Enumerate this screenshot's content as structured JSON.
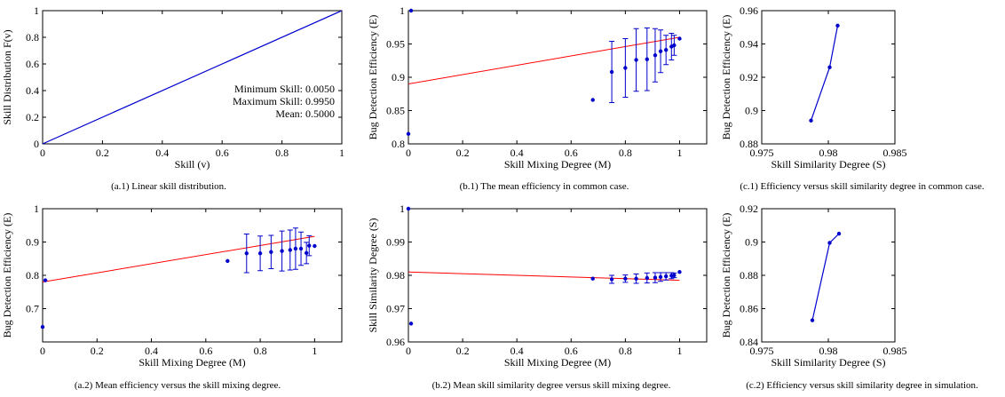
{
  "chart_data": [
    {
      "id": "a1",
      "type": "line",
      "xlabel": "Skill (v)",
      "ylabel": "Skill Distribution F(v)",
      "caption": "(a.1) Linear skill distribution.",
      "xlim": [
        0,
        1
      ],
      "ylim": [
        0,
        1
      ],
      "xticks": [
        0,
        0.2,
        0.4,
        0.6,
        0.8,
        1
      ],
      "yticks": [
        0,
        0.2,
        0.4,
        0.6,
        0.8,
        1
      ],
      "annotations": [
        "Minimum Skill: 0.0050",
        "Maximum Skill: 0.9950",
        "Mean: 0.5000"
      ],
      "series": [
        {
          "color": "#0000cc",
          "style": "line",
          "x": [
            0,
            1
          ],
          "y": [
            0,
            1
          ]
        }
      ]
    },
    {
      "id": "b1",
      "type": "scatter",
      "xlabel": "Skill Mixing Degree (M)",
      "ylabel": "Bug Detection Efficiency (E)",
      "caption": "(b.1) The mean efficiency in common case.",
      "xlim": [
        0,
        1.1
      ],
      "ylim": [
        0.8,
        1
      ],
      "xticks": [
        0,
        0.2,
        0.4,
        0.6,
        0.8,
        1
      ],
      "yticks": [
        0.8,
        0.85,
        0.9,
        0.95,
        1
      ],
      "fit": {
        "x": [
          0,
          1
        ],
        "y": [
          0.89,
          0.96
        ],
        "color": "#ff0000"
      },
      "series": [
        {
          "color": "#0000cc",
          "style": "errorbar",
          "x": [
            0.0,
            0.01,
            0.68,
            0.75,
            0.8,
            0.84,
            0.88,
            0.91,
            0.93,
            0.95,
            0.97,
            0.98,
            1.0
          ],
          "y": [
            0.815,
            1.0,
            0.866,
            0.908,
            0.914,
            0.926,
            0.927,
            0.933,
            0.939,
            0.941,
            0.946,
            0.948,
            0.958
          ],
          "err": [
            0,
            0,
            0,
            0.046,
            0.044,
            0.047,
            0.047,
            0.04,
            0.032,
            0.022,
            0.02,
            0.015,
            0
          ]
        }
      ]
    },
    {
      "id": "c1",
      "type": "line",
      "xlabel": "Skill Similarity Degree (S)",
      "ylabel": "Bug Detection Efficiency (E)",
      "caption": "(c.1) Efficiency versus skill similarity degree in common case.",
      "xlim": [
        0.975,
        0.985
      ],
      "ylim": [
        0.88,
        0.96
      ],
      "xticks": [
        0.975,
        0.98,
        0.985
      ],
      "xticklabels": [
        "0.975",
        "0.98",
        "0.985"
      ],
      "yticks": [
        0.88,
        0.9,
        0.92,
        0.94,
        0.96
      ],
      "series": [
        {
          "color": "#0000cc",
          "style": "line-marker",
          "x": [
            0.9787,
            0.9801,
            0.9807
          ],
          "y": [
            0.894,
            0.926,
            0.951
          ]
        }
      ]
    },
    {
      "id": "a2",
      "type": "scatter",
      "xlabel": "Skill Mixing Degree (M)",
      "ylabel": "Bug Detection Efficiency (E)",
      "caption": "(a.2) Mean efficiency versus the skill mixing degree.",
      "xlim": [
        0,
        1.1
      ],
      "ylim": [
        0.6,
        1
      ],
      "xticks": [
        0,
        0.2,
        0.4,
        0.6,
        0.8,
        1
      ],
      "yticks": [
        0.7,
        0.8,
        0.9,
        1
      ],
      "fit": {
        "x": [
          0,
          1
        ],
        "y": [
          0.78,
          0.917
        ],
        "color": "#ff0000"
      },
      "series": [
        {
          "color": "#0000cc",
          "style": "errorbar",
          "x": [
            0.0,
            0.01,
            0.68,
            0.75,
            0.8,
            0.84,
            0.88,
            0.91,
            0.93,
            0.95,
            0.97,
            0.98,
            1.0
          ],
          "y": [
            0.645,
            0.785,
            0.843,
            0.866,
            0.866,
            0.87,
            0.873,
            0.876,
            0.88,
            0.88,
            0.867,
            0.889,
            0.888
          ],
          "err": [
            0,
            0,
            0,
            0.058,
            0.052,
            0.05,
            0.06,
            0.06,
            0.062,
            0.05,
            0.032,
            0.03,
            0
          ]
        }
      ]
    },
    {
      "id": "b2",
      "type": "scatter",
      "xlabel": "Skill Mixing Degree (M)",
      "ylabel": "Skill Similarity Degree (S)",
      "caption": "(b.2) Mean skill similarity degree versus skill mixing degree.",
      "xlim": [
        0,
        1.1
      ],
      "ylim": [
        0.96,
        1
      ],
      "xticks": [
        0,
        0.2,
        0.4,
        0.6,
        0.8,
        1
      ],
      "yticks": [
        0.96,
        0.97,
        0.98,
        0.99,
        1
      ],
      "fit": {
        "x": [
          0,
          1
        ],
        "y": [
          0.981,
          0.9785
        ],
        "color": "#ff0000"
      },
      "series": [
        {
          "color": "#0000cc",
          "style": "errorbar",
          "x": [
            0.0,
            0.01,
            0.68,
            0.75,
            0.8,
            0.84,
            0.88,
            0.91,
            0.93,
            0.95,
            0.97,
            0.98,
            1.0
          ],
          "y": [
            1.0,
            0.9655,
            0.979,
            0.9788,
            0.979,
            0.979,
            0.9792,
            0.9793,
            0.9795,
            0.9797,
            0.9799,
            0.98,
            0.981
          ],
          "err": [
            0,
            0,
            0,
            0.0012,
            0.0011,
            0.0014,
            0.0015,
            0.0015,
            0.0013,
            0.0011,
            0.0009,
            0.0007,
            0
          ]
        }
      ]
    },
    {
      "id": "c2",
      "type": "line",
      "xlabel": "Skill Similarity Degree (S)",
      "ylabel": "Bug Detection Efficiency (E)",
      "caption": "(c.2) Efficiency versus skill similarity degree in simulation.",
      "xlim": [
        0.975,
        0.985
      ],
      "ylim": [
        0.84,
        0.92
      ],
      "xticks": [
        0.975,
        0.98,
        0.985
      ],
      "xticklabels": [
        "0.975",
        "0.98",
        "0.985"
      ],
      "yticks": [
        0.84,
        0.86,
        0.88,
        0.9,
        0.92
      ],
      "series": [
        {
          "color": "#0000cc",
          "style": "line-marker",
          "x": [
            0.9788,
            0.9801,
            0.9808
          ],
          "y": [
            0.853,
            0.8995,
            0.905
          ]
        }
      ]
    }
  ]
}
